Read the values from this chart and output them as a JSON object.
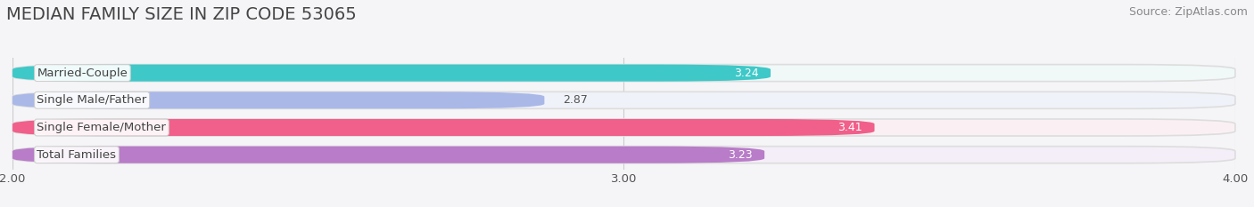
{
  "title": "MEDIAN FAMILY SIZE IN ZIP CODE 53065",
  "source": "Source: ZipAtlas.com",
  "categories": [
    "Married-Couple",
    "Single Male/Father",
    "Single Female/Mother",
    "Total Families"
  ],
  "values": [
    3.24,
    2.87,
    3.41,
    3.23
  ],
  "bar_colors": [
    "#3ec8c8",
    "#aab8e8",
    "#f0608a",
    "#b87cc8"
  ],
  "bar_bg_colors": [
    "#f0f8f8",
    "#f0f2fa",
    "#faf0f4",
    "#f4eef8"
  ],
  "value_inside": [
    true,
    false,
    true,
    true
  ],
  "xlim": [
    2.0,
    4.0
  ],
  "xticks": [
    2.0,
    3.0,
    4.0
  ],
  "xtick_labels": [
    "2.00",
    "3.00",
    "4.00"
  ],
  "title_fontsize": 14,
  "label_fontsize": 9.5,
  "value_fontsize": 9,
  "source_fontsize": 9,
  "bg_color": "#f5f5f8",
  "bar_height": 0.62,
  "text_color": "#555555",
  "grid_color": "#cccccc"
}
